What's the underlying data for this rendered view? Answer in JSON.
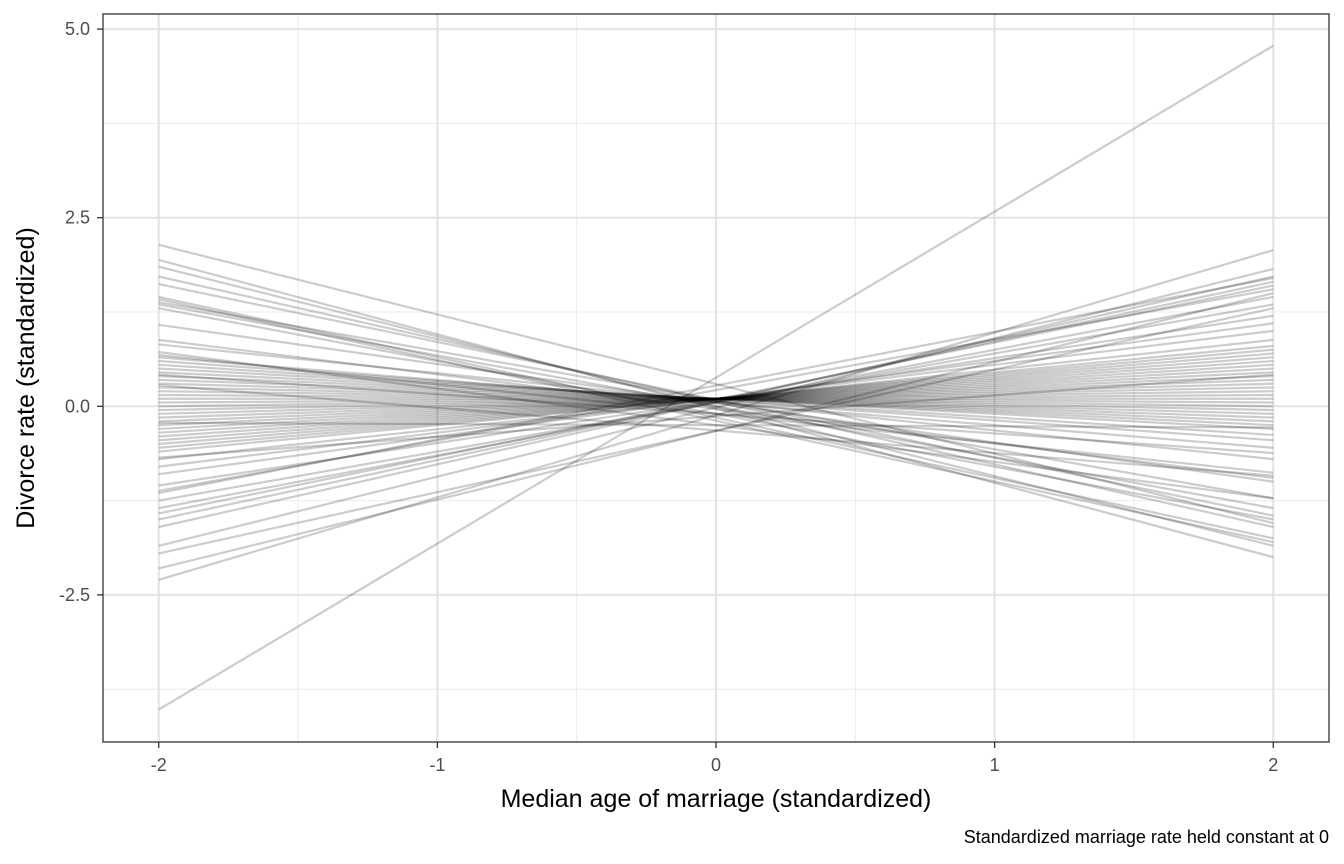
{
  "chart_data": {
    "type": "line",
    "title": "",
    "xlabel": "Median age of marriage (standardized)",
    "ylabel": "Divorce rate (standardized)",
    "caption": "Standardized marriage rate held constant at 0",
    "xlim": [
      -2.2,
      2.2
    ],
    "ylim": [
      -4.45,
      5.2
    ],
    "x_ticks": [
      -2,
      -1,
      0,
      1,
      2
    ],
    "x_tick_labels": [
      "-2",
      "-1",
      "0",
      "1",
      "2"
    ],
    "y_ticks": [
      -2.5,
      0,
      2.5,
      5
    ],
    "y_tick_labels": [
      "-2.5",
      "0.0",
      "2.5",
      "5.0"
    ],
    "x_minor_ticks": [
      -1.5,
      -0.5,
      0.5,
      1.5
    ],
    "y_minor_ticks": [
      -3.75,
      -1.25,
      1.25,
      3.75
    ],
    "grid": true,
    "line_color": "#000000",
    "line_opacity": 0.2,
    "x": [
      -2,
      2
    ],
    "series": [
      {
        "values": [
          -4.02,
          4.78
        ]
      },
      {
        "values": [
          2.14,
          -1.55
        ]
      },
      {
        "values": [
          1.94,
          -2.0
        ]
      },
      {
        "values": [
          1.85,
          -1.85
        ]
      },
      {
        "values": [
          1.72,
          -1.6
        ]
      },
      {
        "values": [
          1.62,
          -1.45
        ]
      },
      {
        "values": [
          1.45,
          -1.75
        ]
      },
      {
        "values": [
          1.42,
          -1.8
        ]
      },
      {
        "values": [
          1.38,
          -1.22
        ]
      },
      {
        "values": [
          1.35,
          -1.35
        ]
      },
      {
        "values": [
          1.3,
          -1.5
        ]
      },
      {
        "values": [
          1.08,
          -1.0
        ]
      },
      {
        "values": [
          0.88,
          -0.95
        ]
      },
      {
        "values": [
          0.82,
          -0.7
        ]
      },
      {
        "values": [
          0.68,
          -0.88
        ]
      },
      {
        "values": [
          0.65,
          -0.55
        ]
      },
      {
        "values": [
          0.6,
          -0.45
        ]
      },
      {
        "values": [
          0.55,
          -0.38
        ]
      },
      {
        "values": [
          0.5,
          -0.3
        ]
      },
      {
        "values": [
          0.45,
          -0.25
        ]
      },
      {
        "values": [
          0.4,
          -0.2
        ]
      },
      {
        "values": [
          0.35,
          -0.15
        ]
      },
      {
        "values": [
          0.3,
          -0.1
        ]
      },
      {
        "values": [
          0.25,
          -0.05
        ]
      },
      {
        "values": [
          0.2,
          0.0
        ]
      },
      {
        "values": [
          0.15,
          0.05
        ]
      },
      {
        "values": [
          0.1,
          0.1
        ]
      },
      {
        "values": [
          0.05,
          0.15
        ]
      },
      {
        "values": [
          0.0,
          0.2
        ]
      },
      {
        "values": [
          -0.05,
          0.25
        ]
      },
      {
        "values": [
          -0.1,
          0.3
        ]
      },
      {
        "values": [
          -0.15,
          0.35
        ]
      },
      {
        "values": [
          -0.2,
          0.4
        ]
      },
      {
        "values": [
          -0.25,
          0.45
        ]
      },
      {
        "values": [
          -0.3,
          0.5
        ]
      },
      {
        "values": [
          -0.35,
          0.55
        ]
      },
      {
        "values": [
          -0.4,
          0.6
        ]
      },
      {
        "values": [
          -0.45,
          0.65
        ]
      },
      {
        "values": [
          -0.5,
          0.7
        ]
      },
      {
        "values": [
          -0.55,
          0.75
        ]
      },
      {
        "values": [
          -0.6,
          0.8
        ]
      },
      {
        "values": [
          -0.7,
          0.88
        ]
      },
      {
        "values": [
          -0.8,
          1.0
        ]
      },
      {
        "values": [
          -0.9,
          1.1
        ]
      },
      {
        "values": [
          -1.05,
          1.2
        ]
      },
      {
        "values": [
          -1.12,
          1.55
        ]
      },
      {
        "values": [
          -1.15,
          1.7
        ]
      },
      {
        "values": [
          -1.25,
          1.35
        ]
      },
      {
        "values": [
          -1.35,
          1.45
        ]
      },
      {
        "values": [
          -1.42,
          1.6
        ]
      },
      {
        "values": [
          -1.5,
          1.65
        ]
      },
      {
        "values": [
          -1.6,
          1.72
        ]
      },
      {
        "values": [
          -1.85,
          1.82
        ]
      },
      {
        "values": [
          -1.95,
          1.3
        ]
      },
      {
        "values": [
          -2.15,
          1.5
        ]
      },
      {
        "values": [
          -2.3,
          2.07
        ]
      },
      {
        "values": [
          0.28,
          -0.92
        ]
      },
      {
        "values": [
          0.42,
          -0.62
        ]
      },
      {
        "values": [
          -0.22,
          -0.28
        ]
      },
      {
        "values": [
          0.72,
          -1.22
        ]
      },
      {
        "values": [
          -0.68,
          0.42
        ]
      }
    ]
  }
}
